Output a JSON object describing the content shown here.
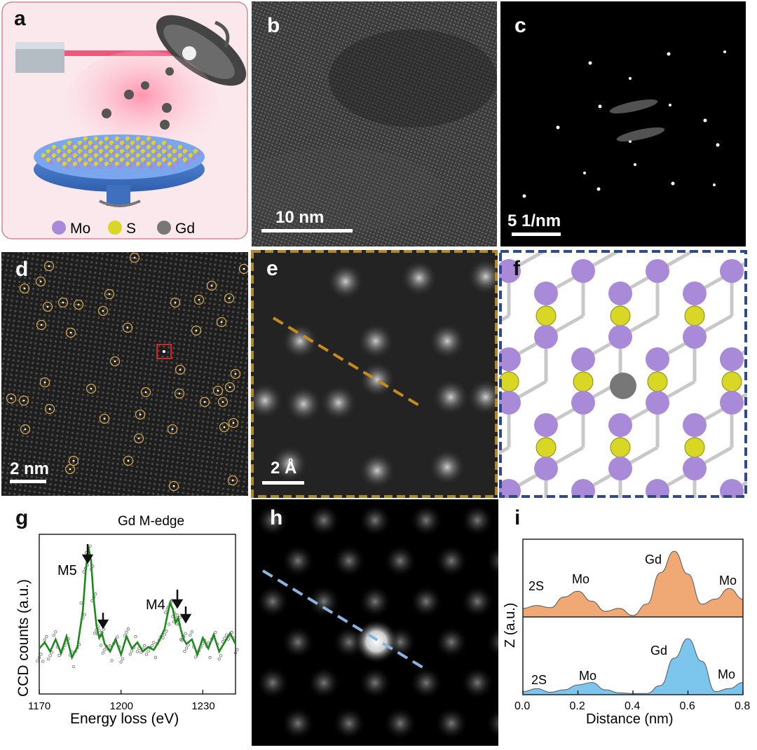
{
  "panels": {
    "a": {
      "label": "a",
      "legend": [
        {
          "name": "Mo",
          "color": "#a98ad8"
        },
        {
          "name": "S",
          "color": "#d9d726"
        },
        {
          "name": "Gd",
          "color": "#777777"
        }
      ]
    },
    "b": {
      "label": "b",
      "scale": "10 nm"
    },
    "c": {
      "label": "c",
      "scale": "5  1/nm"
    },
    "d": {
      "label": "d",
      "scale": "2 nm"
    },
    "e": {
      "label": "e",
      "scale": "2 Å"
    },
    "f": {
      "label": "f"
    },
    "g": {
      "label": "g"
    },
    "h": {
      "label": "h"
    },
    "i": {
      "label": "i"
    }
  },
  "colors": {
    "mo": "#a98ad8",
    "s": "#d9d726",
    "gd": "#777777",
    "circle": "#d6a64a",
    "frame_e": "#b08a2a",
    "frame_f": "#2e4a8a",
    "eels_line": "#1c8a1c",
    "top_fill": "#f0a875",
    "bot_fill": "#7cc6ee"
  },
  "chart_data": [
    {
      "type": "line",
      "panel": "g",
      "xlabel": "Energy loss (eV)",
      "ylabel": "CCD counts (a.u.)",
      "xlim": [
        1170,
        1242
      ],
      "xticks": [
        "1170",
        "1200",
        "1230"
      ],
      "title": "Gd M-edge",
      "annotations": [
        "M5",
        "M4"
      ],
      "series": [
        {
          "x": [
            1170,
            1172,
            1174,
            1176,
            1178,
            1180,
            1182,
            1184,
            1186,
            1187,
            1188,
            1189,
            1190,
            1191,
            1192,
            1193,
            1194,
            1196,
            1198,
            1200,
            1202,
            1204,
            1206,
            1208,
            1210,
            1212,
            1214,
            1216,
            1217,
            1218,
            1219,
            1220,
            1221,
            1222,
            1223,
            1224,
            1226,
            1228,
            1230,
            1232,
            1234,
            1236,
            1238,
            1240,
            1242
          ],
          "y": [
            0.3,
            0.34,
            0.28,
            0.36,
            0.27,
            0.38,
            0.24,
            0.31,
            0.55,
            0.8,
            0.97,
            0.88,
            0.62,
            0.45,
            0.37,
            0.4,
            0.33,
            0.28,
            0.36,
            0.26,
            0.38,
            0.3,
            0.34,
            0.28,
            0.31,
            0.29,
            0.35,
            0.43,
            0.52,
            0.6,
            0.56,
            0.47,
            0.5,
            0.42,
            0.36,
            0.33,
            0.36,
            0.26,
            0.37,
            0.3,
            0.39,
            0.28,
            0.34,
            0.4,
            0.33
          ]
        }
      ]
    },
    {
      "type": "area",
      "panel": "i",
      "xlabel": "Distance (nm)",
      "ylabel": "Z (a.u.)",
      "xlim": [
        0,
        0.8
      ],
      "xticks": [
        "0.0",
        "0.2",
        "0.4",
        "0.6",
        "0.8"
      ],
      "series": [
        {
          "labels": [
            "2S",
            "Mo",
            "Gd",
            "Mo"
          ],
          "x": [
            0,
            0.05,
            0.1,
            0.15,
            0.2,
            0.25,
            0.3,
            0.35,
            0.4,
            0.45,
            0.5,
            0.55,
            0.6,
            0.65,
            0.7,
            0.75,
            0.8
          ],
          "y": [
            0.12,
            0.16,
            0.13,
            0.28,
            0.36,
            0.22,
            0.08,
            0.12,
            0.02,
            0.18,
            0.62,
            0.92,
            0.6,
            0.18,
            0.25,
            0.4,
            0.25
          ]
        },
        {
          "labels": [
            "2S",
            "Mo",
            "Gd",
            "Mo"
          ],
          "x": [
            0,
            0.05,
            0.1,
            0.15,
            0.2,
            0.25,
            0.3,
            0.35,
            0.4,
            0.45,
            0.5,
            0.55,
            0.6,
            0.65,
            0.7,
            0.75,
            0.8
          ],
          "y": [
            0.05,
            0.1,
            0.04,
            0.08,
            0.16,
            0.2,
            0.08,
            0.03,
            0.02,
            0.02,
            0.15,
            0.6,
            0.92,
            0.55,
            0.05,
            0.1,
            0.2
          ]
        }
      ]
    }
  ]
}
